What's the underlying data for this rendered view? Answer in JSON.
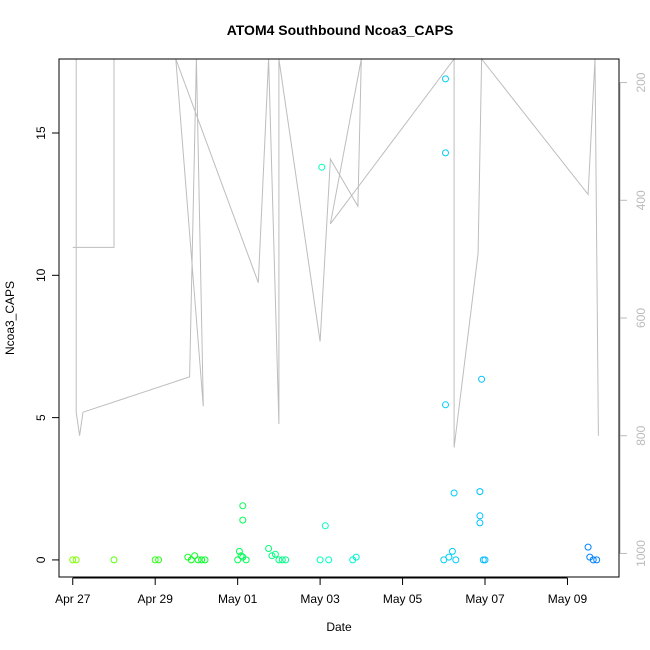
{
  "chart_data": {
    "type": "scatter",
    "title": "ATOM4 Southbound Ncoa3_CAPS",
    "xlabel": "Date",
    "ylabel": "Ncoa3_CAPS",
    "x_ticks": [
      "Apr 27",
      "Apr 29",
      "May 01",
      "May 03",
      "May 05",
      "May 07",
      "May 09"
    ],
    "xlim": [
      "2019-04-26 16:00",
      "2019-05-10 06:00"
    ],
    "ylim": [
      -0.6,
      17.6
    ],
    "y_ticks": [
      0,
      5,
      10,
      15
    ],
    "y2_ticks": [
      200,
      400,
      600,
      800,
      1000
    ],
    "y2lim": [
      1040,
      160
    ],
    "y2_axis_color": "#bbbbbb",
    "grid": false,
    "colors": {
      "trace_line": "#bdbdbd",
      "point_gradient": [
        "#7fff00",
        "#00ff22",
        "#00ffcc",
        "#00c8ff",
        "#0080ff"
      ]
    },
    "series": [
      {
        "points": [
          {
            "x": "2019-04-27 00:00",
            "y": 0
          },
          {
            "x": "2019-04-27 02:00",
            "y": 0
          },
          {
            "x": "2019-04-28 00:00",
            "y": 0
          },
          {
            "x": "2019-04-29 00:00",
            "y": 0
          },
          {
            "x": "2019-04-29 02:00",
            "y": 0
          },
          {
            "x": "2019-04-29 19:00",
            "y": 0.1
          },
          {
            "x": "2019-04-29 21:00",
            "y": 0
          },
          {
            "x": "2019-04-29 23:00",
            "y": 0.15
          },
          {
            "x": "2019-04-30 01:00",
            "y": 0
          },
          {
            "x": "2019-04-30 03:00",
            "y": 0
          },
          {
            "x": "2019-04-30 05:00",
            "y": 0
          },
          {
            "x": "2019-05-01 00:00",
            "y": 0
          },
          {
            "x": "2019-05-01 01:00",
            "y": 0.3
          },
          {
            "x": "2019-05-01 02:00",
            "y": 0.15
          },
          {
            "x": "2019-05-01 03:00",
            "y": 0.1
          },
          {
            "x": "2019-05-01 03:00",
            "y": 1.9
          },
          {
            "x": "2019-05-01 03:00",
            "y": 1.4
          },
          {
            "x": "2019-05-01 05:00",
            "y": 0
          },
          {
            "x": "2019-05-01 18:00",
            "y": 0.4
          },
          {
            "x": "2019-05-01 20:00",
            "y": 0.15
          },
          {
            "x": "2019-05-01 22:00",
            "y": 0.2
          },
          {
            "x": "2019-05-02 00:00",
            "y": 0
          },
          {
            "x": "2019-05-02 02:00",
            "y": 0
          },
          {
            "x": "2019-05-02 04:00",
            "y": 0
          },
          {
            "x": "2019-05-03 00:00",
            "y": 0
          },
          {
            "x": "2019-05-03 01:00",
            "y": 13.8
          },
          {
            "x": "2019-05-03 03:00",
            "y": 1.2
          },
          {
            "x": "2019-05-03 05:00",
            "y": 0
          },
          {
            "x": "2019-05-03 19:00",
            "y": 0
          },
          {
            "x": "2019-05-03 21:00",
            "y": 0.1
          },
          {
            "x": "2019-05-06 00:00",
            "y": 0
          },
          {
            "x": "2019-05-06 01:00",
            "y": 16.9
          },
          {
            "x": "2019-05-06 01:00",
            "y": 14.3
          },
          {
            "x": "2019-05-06 01:00",
            "y": 5.45
          },
          {
            "x": "2019-05-06 03:00",
            "y": 0.1
          },
          {
            "x": "2019-05-06 05:00",
            "y": 0.3
          },
          {
            "x": "2019-05-06 06:00",
            "y": 2.35
          },
          {
            "x": "2019-05-06 07:00",
            "y": 0
          },
          {
            "x": "2019-05-06 21:00",
            "y": 2.4
          },
          {
            "x": "2019-05-06 21:00",
            "y": 1.55
          },
          {
            "x": "2019-05-06 21:00",
            "y": 1.3
          },
          {
            "x": "2019-05-06 22:00",
            "y": 6.35
          },
          {
            "x": "2019-05-06 23:00",
            "y": 0
          },
          {
            "x": "2019-05-07 00:00",
            "y": 0
          },
          {
            "x": "2019-05-09 12:00",
            "y": 0.45
          },
          {
            "x": "2019-05-09 13:00",
            "y": 0.1
          },
          {
            "x": "2019-05-09 15:00",
            "y": 0
          },
          {
            "x": "2019-05-09 17:00",
            "y": 0
          }
        ],
        "trace_depth_m": [
          {
            "x": "2019-04-27 00:00",
            "y": 480
          },
          {
            "x": "2019-04-27 00:30",
            "y": 480
          },
          {
            "x": "2019-04-28 00:00",
            "y": 480
          },
          {
            "x": "2019-04-28 00:00",
            "y": 160
          },
          {
            "x": "2019-04-27 02:00",
            "y": 160
          },
          {
            "x": "2019-04-27 02:00",
            "y": 760
          },
          {
            "x": "2019-04-27 04:00",
            "y": 800
          },
          {
            "x": "2019-04-27 06:00",
            "y": 760
          },
          {
            "x": "2019-04-29 20:00",
            "y": 700
          },
          {
            "x": "2019-04-30 00:00",
            "y": 160
          },
          {
            "x": "2019-04-30 04:00",
            "y": 750
          },
          {
            "x": "2019-04-29 12:00",
            "y": 160
          },
          {
            "x": "2019-05-01 12:00",
            "y": 540
          },
          {
            "x": "2019-05-01 18:00",
            "y": 160
          },
          {
            "x": "2019-05-02 00:00",
            "y": 780
          },
          {
            "x": "2019-05-02 00:00",
            "y": 160
          },
          {
            "x": "2019-05-03 00:00",
            "y": 640
          },
          {
            "x": "2019-05-03 06:00",
            "y": 330
          },
          {
            "x": "2019-05-03 22:00",
            "y": 410
          },
          {
            "x": "2019-05-04 00:00",
            "y": 160
          },
          {
            "x": "2019-05-03 06:00",
            "y": 440
          },
          {
            "x": "2019-05-06 06:00",
            "y": 160
          },
          {
            "x": "2019-05-06 06:00",
            "y": 820
          },
          {
            "x": "2019-05-06 20:00",
            "y": 490
          },
          {
            "x": "2019-05-06 22:00",
            "y": 160
          },
          {
            "x": "2019-05-09 12:00",
            "y": 390
          },
          {
            "x": "2019-05-09 16:00",
            "y": 160
          },
          {
            "x": "2019-05-09 18:00",
            "y": 800
          }
        ]
      }
    ]
  }
}
